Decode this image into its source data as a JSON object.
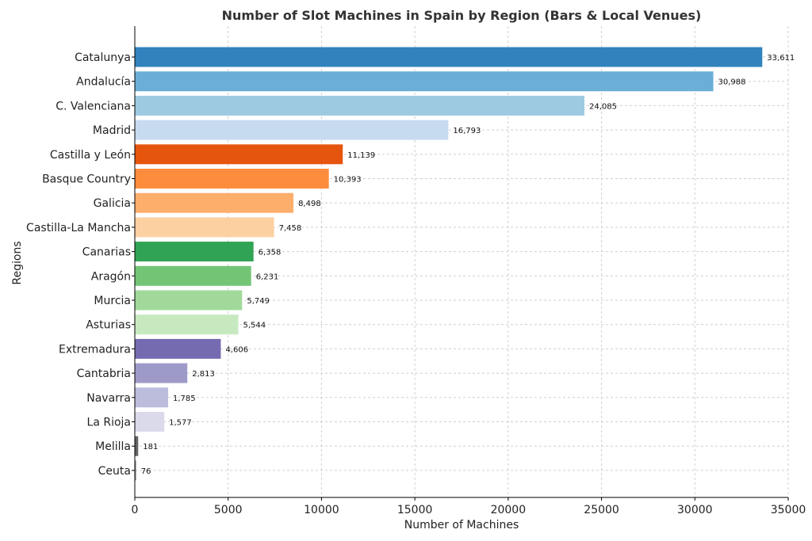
{
  "chart_data": {
    "type": "bar",
    "orientation": "horizontal",
    "title": "Number of Slot Machines in Spain by Region (Bars & Local Venues)",
    "xlabel": "Number of Machines",
    "ylabel": "Regions",
    "xlim": [
      0,
      35000
    ],
    "xticks": [
      0,
      5000,
      10000,
      15000,
      20000,
      25000,
      30000,
      35000
    ],
    "grid": true,
    "categories": [
      "Catalunya",
      "Andalucía",
      "C. Valenciana",
      "Madrid",
      "Castilla y León",
      "Basque Country",
      "Galicia",
      "Castilla-La Mancha",
      "Canarias",
      "Aragón",
      "Murcia",
      "Asturias",
      "Extremadura",
      "Cantabria",
      "Navarra",
      "La Rioja",
      "Melilla",
      "Ceuta"
    ],
    "values": [
      33611,
      30988,
      24085,
      16793,
      11139,
      10393,
      8498,
      7458,
      6358,
      6231,
      5749,
      5544,
      4606,
      2813,
      1785,
      1577,
      181,
      76
    ],
    "value_labels": [
      "33,611",
      "30,988",
      "24,085",
      "16,793",
      "11,139",
      "10,393",
      "8,498",
      "7,458",
      "6,358",
      "6,231",
      "5,749",
      "5,544",
      "4,606",
      "2,813",
      "1,785",
      "1,577",
      "181",
      "76"
    ],
    "colors": [
      "#3182bd",
      "#6baed6",
      "#9ecae1",
      "#c6dbef",
      "#e6550d",
      "#fd8d3c",
      "#fdae6b",
      "#fdd0a2",
      "#31a354",
      "#74c476",
      "#a1d99b",
      "#c7e9c0",
      "#756bb1",
      "#9e9ac8",
      "#bcbddc",
      "#dadaeb",
      "#636363",
      "#969696"
    ]
  }
}
